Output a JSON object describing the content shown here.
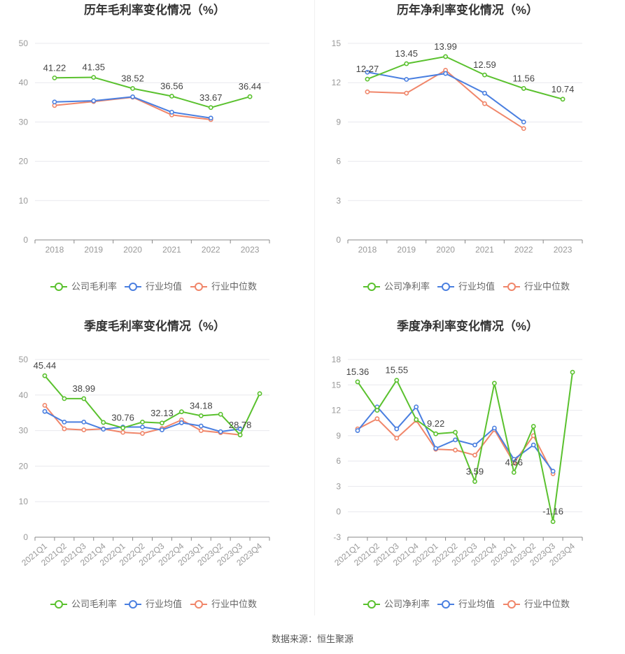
{
  "source": "数据来源：恒生聚源",
  "colors": {
    "company": "#5ac12e",
    "avg": "#4a7fe0",
    "median": "#f0866a",
    "grid": "#e8e8ee",
    "axis": "#888",
    "tick": "#999"
  },
  "charts": [
    {
      "id": "annual-gross",
      "title": "历年毛利率变化情况（%）",
      "legend": [
        "公司毛利率",
        "行业均值",
        "行业中位数"
      ],
      "chart_data": {
        "type": "line",
        "categories": [
          "2018",
          "2019",
          "2020",
          "2021",
          "2022",
          "2023"
        ],
        "ylim": [
          0,
          50
        ],
        "yticks": [
          0,
          10,
          20,
          30,
          40,
          50
        ],
        "series": [
          {
            "name": "公司毛利率",
            "values": [
              41.22,
              41.35,
              38.52,
              36.56,
              33.67,
              36.44
            ],
            "labels": [
              "41.22",
              "41.35",
              "38.52",
              "36.56",
              "33.67",
              "36.44"
            ]
          },
          {
            "name": "行业均值",
            "values": [
              35.1,
              35.4,
              36.4,
              32.5,
              31.0,
              null
            ]
          },
          {
            "name": "行业中位数",
            "values": [
              34.2,
              35.2,
              36.3,
              31.8,
              30.6,
              null
            ]
          }
        ]
      }
    },
    {
      "id": "annual-net",
      "title": "历年净利率变化情况（%）",
      "legend": [
        "公司净利率",
        "行业均值",
        "行业中位数"
      ],
      "chart_data": {
        "type": "line",
        "categories": [
          "2018",
          "2019",
          "2020",
          "2021",
          "2022",
          "2023"
        ],
        "ylim": [
          0,
          15
        ],
        "yticks": [
          0,
          3,
          6,
          9,
          12,
          15
        ],
        "series": [
          {
            "name": "公司净利率",
            "values": [
              12.27,
              13.45,
              13.99,
              12.59,
              11.56,
              10.74
            ],
            "labels": [
              "12.27",
              "13.45",
              "13.99",
              "12.59",
              "11.56",
              "10.74"
            ]
          },
          {
            "name": "行业均值",
            "values": [
              12.8,
              12.25,
              12.7,
              11.2,
              9.0,
              null
            ]
          },
          {
            "name": "行业中位数",
            "values": [
              11.3,
              11.2,
              12.95,
              10.4,
              8.5,
              null
            ]
          }
        ]
      }
    },
    {
      "id": "quarter-gross",
      "title": "季度毛利率变化情况（%）",
      "legend": [
        "公司毛利率",
        "行业均值",
        "行业中位数"
      ],
      "chart_data": {
        "type": "line",
        "categories": [
          "2021Q1",
          "2021Q2",
          "2021Q3",
          "2021Q4",
          "2022Q1",
          "2022Q2",
          "2022Q3",
          "2022Q4",
          "2023Q1",
          "2023Q2",
          "2023Q3",
          "2023Q4"
        ],
        "ylim": [
          0,
          50
        ],
        "yticks": [
          0,
          10,
          20,
          30,
          40,
          50
        ],
        "series": [
          {
            "name": "公司毛利率",
            "values": [
              45.44,
              39.0,
              38.99,
              32.3,
              30.76,
              32.4,
              32.13,
              35.3,
              34.18,
              34.6,
              28.78,
              40.4
            ],
            "labels": [
              "45.44",
              "",
              "38.99",
              "",
              "30.76",
              "",
              "32.13",
              "",
              "34.18",
              "",
              "28.78",
              ""
            ]
          },
          {
            "name": "行业均值",
            "values": [
              35.4,
              32.4,
              32.4,
              30.4,
              31.0,
              31.0,
              30.2,
              32.2,
              31.3,
              29.7,
              30.5,
              null
            ]
          },
          {
            "name": "行业中位数",
            "values": [
              37.1,
              30.5,
              30.2,
              30.5,
              29.5,
              29.2,
              30.6,
              33.0,
              30.0,
              29.4,
              28.8,
              null
            ]
          }
        ]
      }
    },
    {
      "id": "quarter-net",
      "title": "季度净利率变化情况（%）",
      "legend": [
        "公司净利率",
        "行业均值",
        "行业中位数"
      ],
      "chart_data": {
        "type": "line",
        "categories": [
          "2021Q1",
          "2021Q2",
          "2021Q3",
          "2021Q4",
          "2022Q1",
          "2022Q2",
          "2022Q3",
          "2022Q4",
          "2023Q1",
          "2023Q2",
          "2023Q3",
          "2023Q4"
        ],
        "ylim": [
          -3,
          18
        ],
        "yticks": [
          -3,
          0,
          3,
          6,
          9,
          12,
          15,
          18
        ],
        "series": [
          {
            "name": "公司净利率",
            "values": [
              15.36,
              12.0,
              15.55,
              10.9,
              9.22,
              9.4,
              3.59,
              15.2,
              4.66,
              10.1,
              -1.16,
              16.5
            ],
            "labels": [
              "15.36",
              "",
              "15.55",
              "",
              "9.22",
              "",
              "3.59",
              "",
              "4.66",
              "",
              "-1.16",
              ""
            ]
          },
          {
            "name": "行业均值",
            "values": [
              9.6,
              12.4,
              9.8,
              12.4,
              7.5,
              8.5,
              7.9,
              9.9,
              6.2,
              7.9,
              4.8,
              null
            ]
          },
          {
            "name": "行业中位数",
            "values": [
              9.8,
              11.0,
              8.7,
              10.8,
              7.4,
              7.3,
              6.7,
              9.7,
              5.8,
              9.0,
              4.5,
              null
            ]
          }
        ]
      }
    }
  ]
}
